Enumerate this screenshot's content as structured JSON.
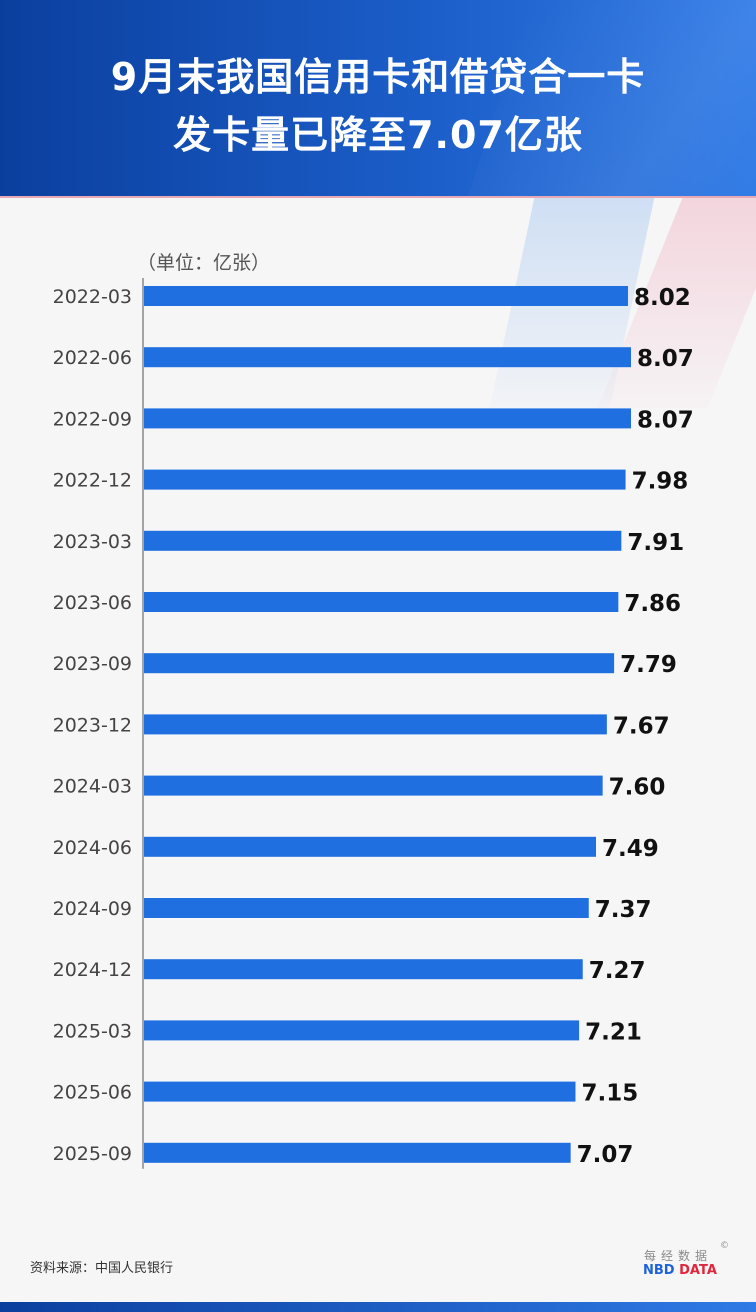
{
  "header": {
    "title_line1": "9月末我国信用卡和借贷合一卡",
    "title_line2": "发卡量已降至7.07亿张"
  },
  "unit_label": "（单位：亿张）",
  "source_label": "资料来源：中国人民银行",
  "brand": {
    "cn": "每经数据",
    "copyright": "©",
    "en_part1": "NBD",
    "en_part2": "DATA"
  },
  "colors": {
    "bar": "#1f6fe0",
    "title_band": "#1550b8",
    "brand_red": "#e0263c"
  },
  "chart_data": {
    "type": "bar",
    "orientation": "horizontal",
    "categories": [
      "2022-03",
      "2022-06",
      "2022-09",
      "2022-12",
      "2023-03",
      "2023-06",
      "2023-09",
      "2023-12",
      "2024-03",
      "2024-06",
      "2024-09",
      "2024-12",
      "2025-03",
      "2025-06",
      "2025-09"
    ],
    "values": [
      8.02,
      8.07,
      8.07,
      7.98,
      7.91,
      7.86,
      7.79,
      7.67,
      7.6,
      7.49,
      7.37,
      7.27,
      7.21,
      7.15,
      7.07
    ],
    "value_labels": [
      "8.02",
      "8.07",
      "8.07",
      "7.98",
      "7.91",
      "7.86",
      "7.79",
      "7.67",
      "7.60",
      "7.49",
      "7.37",
      "7.27",
      "7.21",
      "7.15",
      "7.07"
    ],
    "title": "9月末我国信用卡和借贷合一卡发卡量已降至7.07亿张",
    "unit": "亿张",
    "xlim": [
      0,
      8.07
    ],
    "grid": false,
    "legend": "none"
  }
}
